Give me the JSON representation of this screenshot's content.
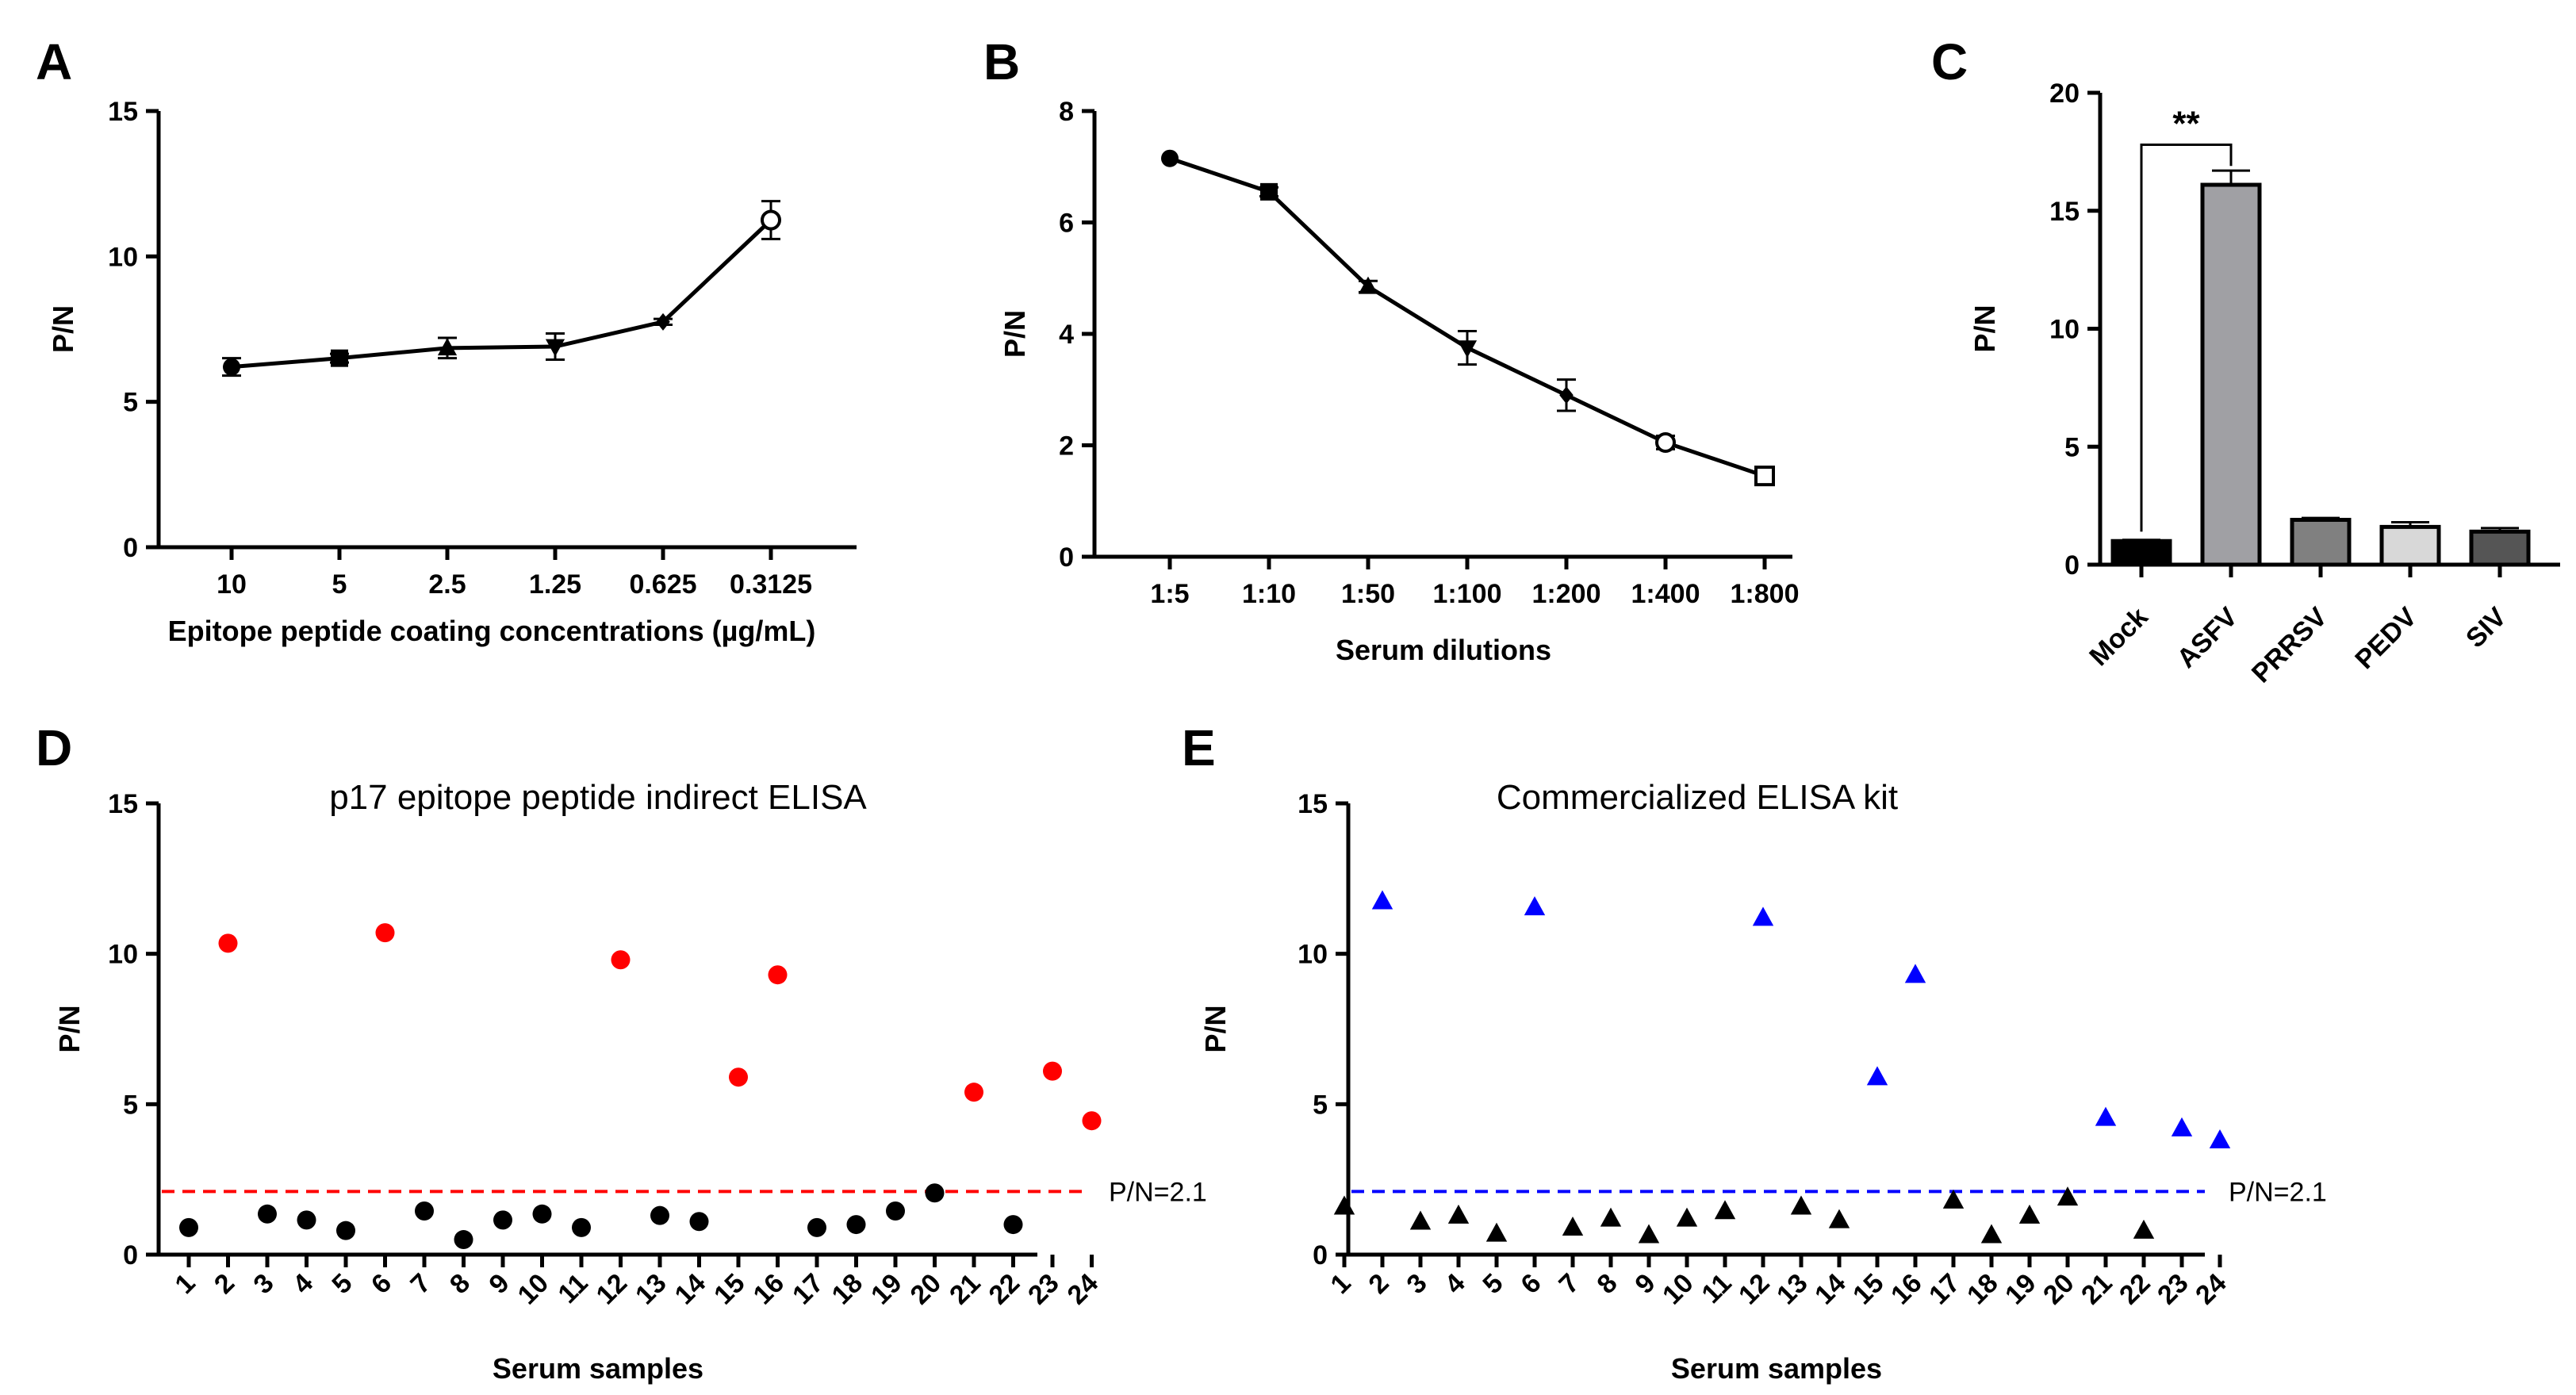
{
  "figure": {
    "panels": [
      "A",
      "B",
      "C",
      "D",
      "E"
    ]
  },
  "chart_data": [
    {
      "panel": "A",
      "type": "line",
      "title": "",
      "categories": [
        "10",
        "5",
        "2.5",
        "1.25",
        "0.625",
        "0.3125"
      ],
      "values": [
        6.2,
        6.5,
        6.85,
        6.9,
        7.75,
        11.25
      ],
      "errors": [
        0.3,
        0.15,
        0.35,
        0.45,
        0.1,
        0.65
      ],
      "markers": [
        "circle",
        "square",
        "triangle-up",
        "triangle-down",
        "diamond",
        "circle-open"
      ],
      "xlabel": "Epitope peptide coating concentrations (µg/mL)",
      "ylabel": "P/N",
      "ylim": [
        0,
        15
      ],
      "yticks": [
        0,
        5,
        10,
        15
      ],
      "grid": false
    },
    {
      "panel": "B",
      "type": "line",
      "title": "",
      "categories": [
        "1:5",
        "1:10",
        "1:50",
        "1:100",
        "1:200",
        "1:400",
        "1:800"
      ],
      "values": [
        7.15,
        6.55,
        4.85,
        3.75,
        2.9,
        2.05,
        1.45
      ],
      "errors": [
        0.05,
        0.08,
        0.1,
        0.3,
        0.28,
        0.12,
        0.08
      ],
      "markers": [
        "circle",
        "square",
        "triangle-up",
        "triangle-down",
        "diamond",
        "circle-open",
        "square-open"
      ],
      "xlabel": "Serum dilutions",
      "ylabel": "P/N",
      "ylim": [
        0,
        8
      ],
      "yticks": [
        0,
        2,
        4,
        6,
        8
      ],
      "grid": false
    },
    {
      "panel": "C",
      "type": "bar",
      "title": "",
      "categories": [
        "Mock",
        "ASFV",
        "PRRSV",
        "PEDV",
        "SIV"
      ],
      "values": [
        1.0,
        16.1,
        1.9,
        1.6,
        1.4
      ],
      "errors": [
        0.05,
        0.6,
        0.08,
        0.2,
        0.15
      ],
      "bar_colors": [
        "#000000",
        "#a0a0a4",
        "#808080",
        "#d8d8d8",
        "#555555"
      ],
      "significance": {
        "from": "Mock",
        "to": "ASFV",
        "label": "**"
      },
      "xlabel": "",
      "ylabel": "P/N",
      "ylim": [
        0,
        20
      ],
      "yticks": [
        0,
        5,
        10,
        15,
        20
      ],
      "grid": false
    },
    {
      "panel": "D",
      "type": "scatter",
      "title": "p17 epitope peptide indirect ELISA",
      "x": [
        "1",
        "2",
        "3",
        "4",
        "5",
        "6",
        "7",
        "8",
        "9",
        "10",
        "11",
        "12",
        "13",
        "14",
        "15",
        "16",
        "17",
        "18",
        "19",
        "20",
        "21",
        "22",
        "23",
        "24"
      ],
      "values": [
        0.9,
        10.35,
        1.35,
        1.15,
        0.8,
        10.7,
        1.45,
        0.5,
        1.15,
        1.35,
        0.9,
        9.8,
        1.3,
        1.1,
        5.9,
        9.3,
        0.9,
        1.0,
        1.45,
        2.05,
        5.4,
        1.0,
        6.1,
        4.45
      ],
      "threshold": 2.1,
      "threshold_label": "P/N=2.1",
      "positive_color": "#ff0000",
      "negative_color": "#000000",
      "line_color": "#ff0000",
      "marker": "circle",
      "xlabel": "Serum samples",
      "ylabel": "P/N",
      "ylim": [
        0,
        15
      ],
      "yticks": [
        0,
        5,
        10,
        15
      ],
      "grid": false
    },
    {
      "panel": "E",
      "type": "scatter",
      "title": "Commercialized ELISA kit",
      "x": [
        "1",
        "2",
        "3",
        "4",
        "5",
        "6",
        "7",
        "8",
        "9",
        "10",
        "11",
        "12",
        "13",
        "14",
        "15",
        "16",
        "17",
        "18",
        "19",
        "20",
        "21",
        "22",
        "23",
        "24"
      ],
      "values": [
        1.6,
        11.75,
        1.1,
        1.3,
        0.7,
        11.55,
        0.9,
        1.2,
        0.65,
        1.2,
        1.45,
        11.2,
        1.6,
        1.15,
        5.9,
        9.3,
        1.8,
        0.65,
        1.3,
        1.9,
        4.55,
        0.8,
        4.2,
        3.8
      ],
      "threshold": 2.1,
      "threshold_label": "P/N=2.1",
      "positive_color": "#0000ff",
      "negative_color": "#000000",
      "line_color": "#0000ff",
      "marker": "triangle-up",
      "xlabel": "Serum samples",
      "ylabel": "P/N",
      "ylim": [
        0,
        15
      ],
      "yticks": [
        0,
        5,
        10,
        15
      ],
      "grid": false
    }
  ]
}
